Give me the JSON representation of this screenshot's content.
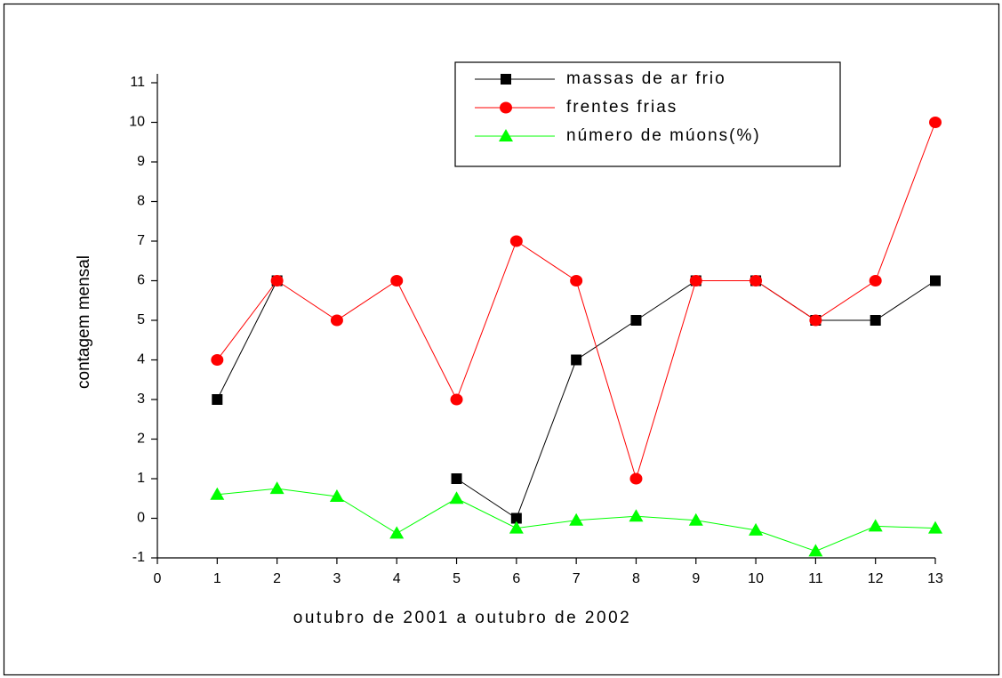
{
  "chart_data": {
    "type": "line",
    "xlabel": "outubro de 2001 a outubro de 2002",
    "ylabel": "contagem mensal",
    "x": [
      1,
      2,
      3,
      4,
      5,
      6,
      7,
      8,
      9,
      10,
      11,
      12,
      13
    ],
    "series": [
      {
        "name": "massas de ar frio",
        "color": "#000000",
        "marker": "square",
        "values": [
          3,
          6,
          null,
          null,
          1,
          0,
          4,
          5,
          6,
          6,
          5,
          5,
          6
        ]
      },
      {
        "name": "frentes frias",
        "color": "#ff0000",
        "marker": "circle",
        "values": [
          4,
          6,
          5,
          6,
          3,
          7,
          6,
          1,
          6,
          6,
          5,
          6,
          10
        ]
      },
      {
        "name": "número de múons(%)",
        "color": "#00ff00",
        "marker": "triangle",
        "values": [
          0.6,
          0.75,
          0.55,
          -0.38,
          0.5,
          -0.25,
          -0.05,
          0.05,
          -0.05,
          -0.3,
          -0.83,
          -0.2,
          -0.25
        ]
      }
    ],
    "xlim": [
      0,
      13
    ],
    "xticks": [
      0,
      1,
      2,
      3,
      4,
      5,
      6,
      7,
      8,
      9,
      10,
      11,
      12,
      13
    ],
    "ylim": [
      -1,
      11
    ],
    "yticks": [
      -1,
      0,
      1,
      2,
      3,
      4,
      5,
      6,
      7,
      8,
      9,
      10,
      11
    ],
    "grid": false,
    "legend": "upper right"
  }
}
